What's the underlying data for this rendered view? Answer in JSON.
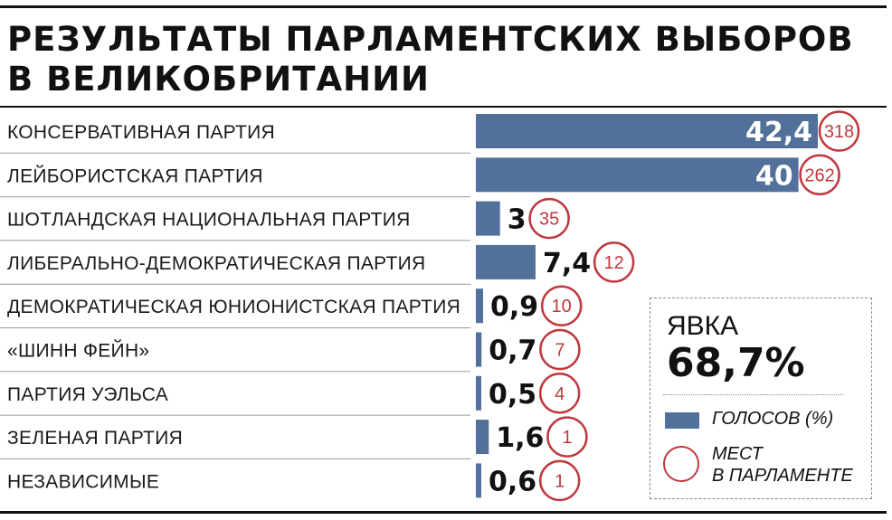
{
  "title_line1": "РЕЗУЛЬТАТЫ ПАРЛАМЕНТСКИХ ВЫБОРОВ",
  "title_line2": "В ВЕЛИКОБРИТАНИИ",
  "colors": {
    "bar": "#52719a",
    "seat_circle": "#c0383e",
    "text": "#111111"
  },
  "chart_data": {
    "type": "bar",
    "orientation": "horizontal",
    "categories": [
      "КОНСЕРВАТИВНАЯ ПАРТИЯ",
      "ЛЕЙБОРИСТСКАЯ ПАРТИЯ",
      "ШОТЛАНДСКАЯ НАЦИОНАЛЬНАЯ ПАРТИЯ",
      "ЛИБЕРАЛЬНО-ДЕМОКРАТИЧЕСКАЯ ПАРТИЯ",
      "ДЕМОКРАТИЧЕСКАЯ ЮНИОНИСТСКАЯ ПАРТИЯ",
      "«ШИНН ФЕЙН»",
      "ПАРТИЯ УЭЛЬСА",
      "ЗЕЛЕНАЯ ПАРТИЯ",
      "НЕЗАВИСИМЫЕ"
    ],
    "values": [
      42.4,
      40,
      3,
      7.4,
      0.9,
      0.7,
      0.5,
      1.6,
      0.6
    ],
    "value_labels": [
      "42,4",
      "40",
      "3",
      "7,4",
      "0,9",
      "0,7",
      "0,5",
      "1,6",
      "0,6"
    ],
    "seats": [
      318,
      262,
      35,
      12,
      10,
      7,
      4,
      1,
      1
    ],
    "xlim": [
      0,
      42.4
    ],
    "legend": {
      "placement": "bottom-right",
      "votes_label": "ГОЛОСОВ (%)",
      "seats_label_line1": "МЕСТ",
      "seats_label_line2": "В ПАРЛАМЕНТЕ"
    }
  },
  "turnout": {
    "label": "ЯВКА",
    "value": "68,7%"
  }
}
